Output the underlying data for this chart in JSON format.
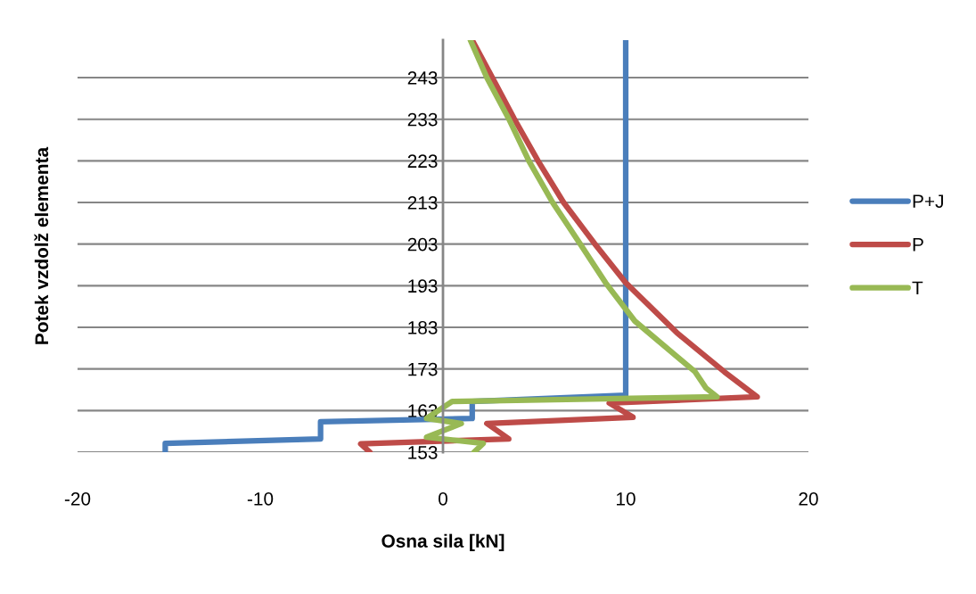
{
  "chart_data": {
    "type": "line",
    "xlabel": "Osna sila [kN]",
    "ylabel": "Potek vzdolž elementa",
    "xlim": [
      -20,
      20
    ],
    "xticks": [
      -20,
      -10,
      0,
      10,
      20
    ],
    "ylim": [
      153,
      252
    ],
    "yticks": [
      153,
      163,
      173,
      183,
      193,
      203,
      213,
      223,
      233,
      243
    ],
    "grid": "y",
    "legend": "right",
    "marker": "none",
    "line_style": "solid",
    "series": [
      {
        "name": "P+J",
        "color": "#4a7ebb",
        "x": [
          -15.2,
          -15.2,
          -6.7,
          -6.7,
          1.6,
          1.6,
          10,
          10
        ],
        "values": [
          153,
          155.1,
          156.2,
          160.3,
          161.1,
          165.2,
          166.7,
          252
        ]
      },
      {
        "name": "P",
        "color": "#be4b48",
        "x": [
          -4.0,
          -4.5,
          3.6,
          2.4,
          10.4,
          9.1,
          17.2,
          15.4,
          12.8,
          10.0,
          8.3,
          6.6,
          5.2,
          3.9,
          2.7,
          1.6
        ],
        "values": [
          153,
          155,
          156.2,
          159.9,
          161.4,
          164.8,
          166.3,
          172.3,
          181.7,
          193.7,
          203.1,
          213,
          223,
          233.1,
          243,
          252
        ]
      },
      {
        "name": "T",
        "color": "#98b954",
        "x": [
          1.7,
          2.2,
          -0.9,
          1.0,
          -0.9,
          0.5,
          15.0,
          14.4,
          13.8,
          10.5,
          8.9,
          7.5,
          6.0,
          4.7,
          3.6,
          2.4,
          1.5
        ],
        "values": [
          153,
          155.1,
          156.6,
          159.9,
          161.1,
          165.2,
          166.3,
          168.4,
          172.3,
          184.5,
          193.7,
          203.1,
          213,
          223,
          233.1,
          243,
          252
        ]
      }
    ]
  }
}
